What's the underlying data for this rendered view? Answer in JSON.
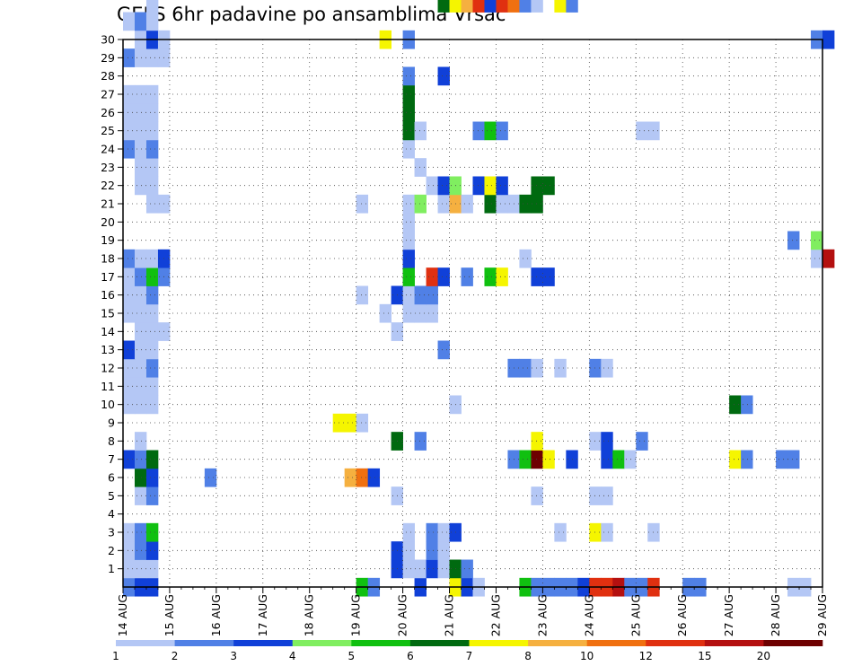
{
  "chart_data": {
    "type": "heatmap",
    "title": "GEFS 6hr padavine po ansamblima Vrsac",
    "xlabel": "",
    "ylabel": "",
    "x_tick_labels": [
      "14 AUG",
      "15 AUG",
      "16 AUG",
      "17 AUG",
      "18 AUG",
      "19 AUG",
      "20 AUG",
      "21 AUG",
      "22 AUG",
      "23 AUG",
      "24 AUG",
      "25 AUG",
      "26 AUG",
      "27 AUG",
      "28 AUG",
      "29 AUG"
    ],
    "y_tick_labels": [
      "1",
      "2",
      "3",
      "4",
      "5",
      "6",
      "7",
      "8",
      "9",
      "10",
      "11",
      "12",
      "13",
      "14",
      "15",
      "16",
      "17",
      "18",
      "19",
      "20",
      "21",
      "22",
      "23",
      "24",
      "25",
      "26",
      "27",
      "28",
      "29",
      "30"
    ],
    "y_range": [
      0,
      30
    ],
    "time_steps_per_day": 4,
    "grid": "dotted",
    "colorbar": {
      "placement": "bottom",
      "tick_labels": [
        "1",
        "2",
        "3",
        "4",
        "5",
        "6",
        "7",
        "8",
        "10",
        "12",
        "15",
        "20"
      ],
      "colors": [
        "#b4c7f5",
        "#5080e6",
        "#1040d8",
        "#80ee60",
        "#10c010",
        "#006a10",
        "#f5f500",
        "#f5b040",
        "#f07010",
        "#e03010",
        "#b41010",
        "#6e0000"
      ]
    },
    "cells": [
      [
        0,
        0,
        2
      ],
      [
        1,
        0,
        3
      ],
      [
        2,
        0,
        3
      ],
      [
        20,
        0,
        5
      ],
      [
        21,
        0,
        2
      ],
      [
        25,
        0,
        3
      ],
      [
        28,
        0,
        7
      ],
      [
        29,
        0,
        3
      ],
      [
        30,
        0,
        1
      ],
      [
        34,
        0,
        5
      ],
      [
        35,
        0,
        2
      ],
      [
        36,
        0,
        2
      ],
      [
        37,
        0,
        2
      ],
      [
        38,
        0,
        2
      ],
      [
        39,
        0,
        3
      ],
      [
        40,
        0,
        10
      ],
      [
        41,
        0,
        10
      ],
      [
        42,
        0,
        11
      ],
      [
        43,
        0,
        2
      ],
      [
        44,
        0,
        2
      ],
      [
        45,
        0,
        10
      ],
      [
        48,
        0,
        2
      ],
      [
        49,
        0,
        2
      ],
      [
        57,
        0,
        1
      ],
      [
        58,
        0,
        1
      ],
      [
        0,
        1,
        1
      ],
      [
        1,
        1,
        1
      ],
      [
        2,
        1,
        1
      ],
      [
        23,
        1,
        3
      ],
      [
        24,
        1,
        1
      ],
      [
        25,
        1,
        1
      ],
      [
        26,
        1,
        3
      ],
      [
        27,
        1,
        1
      ],
      [
        28,
        1,
        6
      ],
      [
        29,
        1,
        2
      ],
      [
        0,
        2,
        1
      ],
      [
        1,
        2,
        2
      ],
      [
        2,
        2,
        3
      ],
      [
        23,
        2,
        3
      ],
      [
        24,
        2,
        1
      ],
      [
        26,
        2,
        2
      ],
      [
        27,
        2,
        1
      ],
      [
        0,
        3,
        1
      ],
      [
        1,
        3,
        2
      ],
      [
        2,
        3,
        5
      ],
      [
        24,
        3,
        1
      ],
      [
        26,
        3,
        2
      ],
      [
        27,
        3,
        1
      ],
      [
        28,
        3,
        3
      ],
      [
        37,
        3,
        1
      ],
      [
        40,
        3,
        7
      ],
      [
        41,
        3,
        1
      ],
      [
        45,
        3,
        1
      ],
      [
        1,
        5,
        1
      ],
      [
        2,
        5,
        2
      ],
      [
        23,
        5,
        1
      ],
      [
        35,
        5,
        1
      ],
      [
        40,
        5,
        1
      ],
      [
        41,
        5,
        1
      ],
      [
        1,
        6,
        6
      ],
      [
        2,
        6,
        3
      ],
      [
        7,
        6,
        2
      ],
      [
        19,
        6,
        8
      ],
      [
        20,
        6,
        9
      ],
      [
        21,
        6,
        3
      ],
      [
        0,
        7,
        3
      ],
      [
        1,
        7,
        2
      ],
      [
        2,
        7,
        6
      ],
      [
        33,
        7,
        2
      ],
      [
        34,
        7,
        5
      ],
      [
        35,
        7,
        12
      ],
      [
        36,
        7,
        7
      ],
      [
        38,
        7,
        3
      ],
      [
        41,
        7,
        3
      ],
      [
        42,
        7,
        5
      ],
      [
        43,
        7,
        1
      ],
      [
        52,
        7,
        7
      ],
      [
        53,
        7,
        2
      ],
      [
        56,
        7,
        2
      ],
      [
        57,
        7,
        2
      ],
      [
        1,
        8,
        1
      ],
      [
        23,
        8,
        6
      ],
      [
        25,
        8,
        2
      ],
      [
        35,
        8,
        7
      ],
      [
        40,
        8,
        1
      ],
      [
        41,
        8,
        3
      ],
      [
        44,
        8,
        2
      ],
      [
        18,
        9,
        7
      ],
      [
        19,
        9,
        7
      ],
      [
        20,
        9,
        1
      ],
      [
        0,
        10,
        1
      ],
      [
        1,
        10,
        1
      ],
      [
        2,
        10,
        1
      ],
      [
        28,
        10,
        1
      ],
      [
        52,
        10,
        6
      ],
      [
        53,
        10,
        2
      ],
      [
        0,
        11,
        1
      ],
      [
        1,
        11,
        1
      ],
      [
        2,
        11,
        1
      ],
      [
        0,
        12,
        1
      ],
      [
        1,
        12,
        1
      ],
      [
        2,
        12,
        2
      ],
      [
        33,
        12,
        2
      ],
      [
        34,
        12,
        2
      ],
      [
        35,
        12,
        1
      ],
      [
        37,
        12,
        1
      ],
      [
        40,
        12,
        2
      ],
      [
        41,
        12,
        1
      ],
      [
        0,
        13,
        3
      ],
      [
        1,
        13,
        1
      ],
      [
        2,
        13,
        1
      ],
      [
        27,
        13,
        2
      ],
      [
        1,
        14,
        1
      ],
      [
        2,
        14,
        1
      ],
      [
        3,
        14,
        1
      ],
      [
        23,
        14,
        1
      ],
      [
        0,
        15,
        1
      ],
      [
        1,
        15,
        1
      ],
      [
        2,
        15,
        1
      ],
      [
        22,
        15,
        1
      ],
      [
        24,
        15,
        1
      ],
      [
        25,
        15,
        1
      ],
      [
        26,
        15,
        1
      ],
      [
        0,
        16,
        1
      ],
      [
        1,
        16,
        1
      ],
      [
        2,
        16,
        2
      ],
      [
        20,
        16,
        1
      ],
      [
        23,
        16,
        3
      ],
      [
        24,
        16,
        1
      ],
      [
        25,
        16,
        2
      ],
      [
        26,
        16,
        2
      ],
      [
        0,
        17,
        1
      ],
      [
        1,
        17,
        2
      ],
      [
        2,
        17,
        5
      ],
      [
        3,
        17,
        2
      ],
      [
        24,
        17,
        5
      ],
      [
        26,
        17,
        10
      ],
      [
        27,
        17,
        3
      ],
      [
        29,
        17,
        2
      ],
      [
        31,
        17,
        5
      ],
      [
        32,
        17,
        7
      ],
      [
        35,
        17,
        3
      ],
      [
        36,
        17,
        3
      ],
      [
        0,
        18,
        2
      ],
      [
        1,
        18,
        1
      ],
      [
        2,
        18,
        1
      ],
      [
        3,
        18,
        3
      ],
      [
        24,
        18,
        3
      ],
      [
        34,
        18,
        1
      ],
      [
        59,
        18,
        1
      ],
      [
        60,
        18,
        11
      ],
      [
        24,
        19,
        1
      ],
      [
        57,
        19,
        2
      ],
      [
        59,
        19,
        4
      ],
      [
        24,
        20,
        1
      ],
      [
        2,
        21,
        1
      ],
      [
        3,
        21,
        1
      ],
      [
        20,
        21,
        1
      ],
      [
        24,
        21,
        1
      ],
      [
        25,
        21,
        4
      ],
      [
        27,
        21,
        1
      ],
      [
        28,
        21,
        8
      ],
      [
        29,
        21,
        1
      ],
      [
        31,
        21,
        6
      ],
      [
        32,
        21,
        1
      ],
      [
        33,
        21,
        1
      ],
      [
        34,
        21,
        6
      ],
      [
        35,
        21,
        6
      ],
      [
        1,
        22,
        1
      ],
      [
        2,
        22,
        1
      ],
      [
        26,
        22,
        1
      ],
      [
        27,
        22,
        3
      ],
      [
        28,
        22,
        4
      ],
      [
        30,
        22,
        3
      ],
      [
        31,
        22,
        7
      ],
      [
        32,
        22,
        3
      ],
      [
        35,
        22,
        6
      ],
      [
        36,
        22,
        6
      ],
      [
        1,
        23,
        1
      ],
      [
        2,
        23,
        1
      ],
      [
        25,
        23,
        1
      ],
      [
        0,
        24,
        2
      ],
      [
        1,
        24,
        1
      ],
      [
        2,
        24,
        2
      ],
      [
        24,
        24,
        1
      ],
      [
        0,
        25,
        1
      ],
      [
        1,
        25,
        1
      ],
      [
        2,
        25,
        1
      ],
      [
        24,
        25,
        6
      ],
      [
        25,
        25,
        1
      ],
      [
        30,
        25,
        2
      ],
      [
        31,
        25,
        5
      ],
      [
        32,
        25,
        2
      ],
      [
        44,
        25,
        1
      ],
      [
        45,
        25,
        1
      ],
      [
        0,
        26,
        1
      ],
      [
        1,
        26,
        1
      ],
      [
        2,
        26,
        1
      ],
      [
        24,
        26,
        6
      ],
      [
        0,
        27,
        1
      ],
      [
        1,
        27,
        1
      ],
      [
        2,
        27,
        1
      ],
      [
        24,
        27,
        6
      ],
      [
        24,
        28,
        2
      ],
      [
        27,
        28,
        3
      ],
      [
        0,
        29,
        2
      ],
      [
        1,
        29,
        1
      ],
      [
        2,
        29,
        1
      ],
      [
        3,
        29,
        1
      ],
      [
        1,
        30,
        1
      ],
      [
        2,
        30,
        3
      ],
      [
        3,
        30,
        1
      ],
      [
        22,
        30,
        7
      ],
      [
        24,
        30,
        2
      ],
      [
        59,
        30,
        2
      ],
      [
        60,
        30,
        3
      ],
      [
        0,
        31,
        1
      ],
      [
        1,
        31,
        2
      ],
      [
        2,
        31,
        1
      ],
      [
        2,
        32,
        1
      ],
      [
        27,
        32,
        6
      ],
      [
        28,
        32,
        7
      ],
      [
        29,
        32,
        8
      ],
      [
        30,
        32,
        10
      ],
      [
        31,
        32,
        3
      ],
      [
        32,
        32,
        10
      ],
      [
        33,
        32,
        9
      ],
      [
        34,
        32,
        2
      ],
      [
        35,
        32,
        1
      ],
      [
        37,
        32,
        7
      ],
      [
        38,
        32,
        2
      ],
      [
        1,
        33,
        1
      ],
      [
        18,
        33,
        1
      ],
      [
        56,
        33,
        1
      ],
      [
        59,
        33,
        1
      ],
      [
        2,
        34,
        1
      ],
      [
        3,
        34,
        1
      ],
      [
        23,
        34,
        5
      ],
      [
        24,
        34,
        1
      ],
      [
        25,
        34,
        1
      ],
      [
        27,
        34,
        1
      ],
      [
        29,
        34,
        1
      ],
      [
        30,
        34,
        5
      ],
      [
        31,
        34,
        5
      ],
      [
        32,
        34,
        1
      ],
      [
        34,
        34,
        12
      ],
      [
        46,
        34,
        1
      ],
      [
        55,
        34,
        2
      ],
      [
        56,
        34,
        2
      ]
    ]
  }
}
